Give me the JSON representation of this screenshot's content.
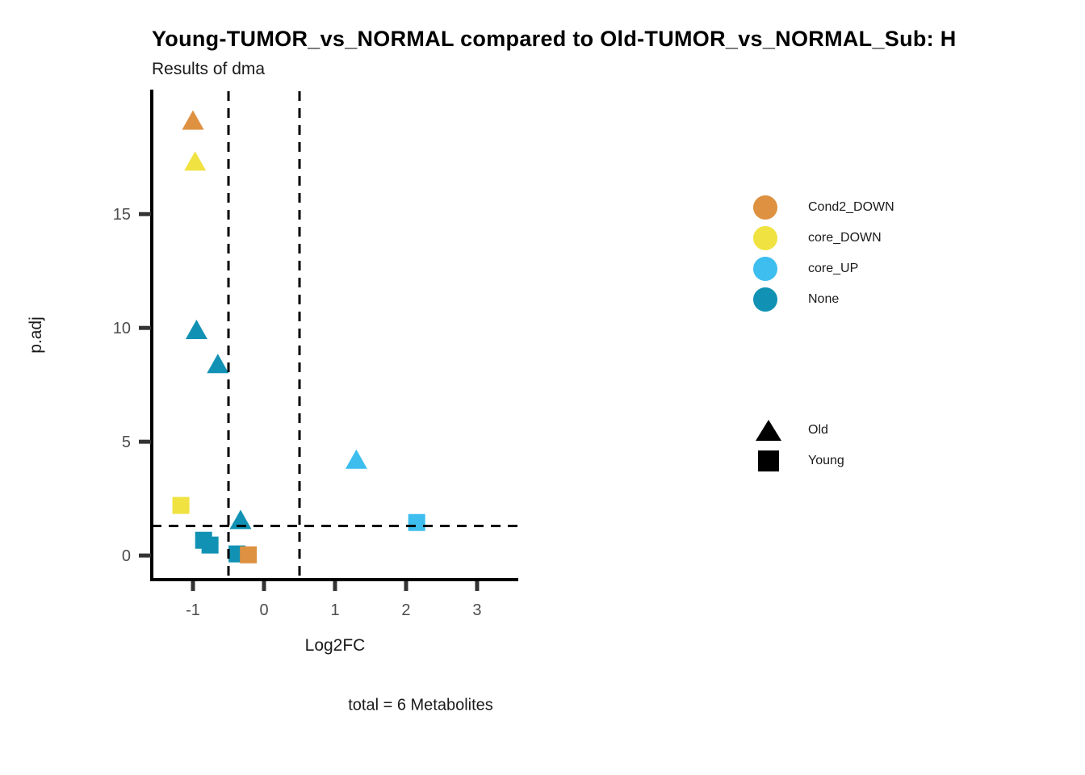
{
  "chart_data": {
    "type": "scatter",
    "title": "Young-TUMOR_vs_NORMAL compared to Old-TUMOR_vs_NORMAL_Sub: H",
    "subtitle": "Results of dma",
    "caption": "total = 6 Metabolites",
    "xlabel": "Log2FC",
    "ylabel": "p.adj",
    "xlim": [
      -1.58,
      3.58
    ],
    "ylim": [
      -1.06,
      20.4
    ],
    "x_ticks": [
      -1,
      0,
      1,
      2,
      3
    ],
    "y_ticks": [
      0,
      5,
      10,
      15
    ],
    "grid": false,
    "legend_position": "right",
    "reference_lines": {
      "style": "dashed",
      "vertical_x": [
        -0.5,
        0.5
      ],
      "horizontal_y": [
        1.3
      ]
    },
    "series_colors": {
      "Cond2_DOWN": "#DE9141",
      "core_DOWN": "#F0E240",
      "core_UP": "#3DBEEE",
      "None": "#1192B4"
    },
    "shape_map": {
      "Old": "triangle",
      "Young": "square"
    },
    "points": [
      {
        "x": -1.0,
        "y": 19.1,
        "category": "Cond2_DOWN",
        "group": "Old"
      },
      {
        "x": -0.97,
        "y": 17.3,
        "category": "core_DOWN",
        "group": "Old"
      },
      {
        "x": -0.95,
        "y": 9.9,
        "category": "None",
        "group": "Old"
      },
      {
        "x": -0.65,
        "y": 8.4,
        "category": "None",
        "group": "Old"
      },
      {
        "x": 1.3,
        "y": 4.2,
        "category": "core_UP",
        "group": "Old"
      },
      {
        "x": -0.33,
        "y": 1.55,
        "category": "None",
        "group": "Old"
      },
      {
        "x": -1.17,
        "y": 2.2,
        "category": "core_DOWN",
        "group": "Young"
      },
      {
        "x": -0.85,
        "y": 0.67,
        "category": "None",
        "group": "Young"
      },
      {
        "x": -0.76,
        "y": 0.46,
        "category": "None",
        "group": "Young"
      },
      {
        "x": -0.38,
        "y": 0.07,
        "category": "None",
        "group": "Young"
      },
      {
        "x": -0.22,
        "y": 0.03,
        "category": "Cond2_DOWN",
        "group": "Young"
      },
      {
        "x": 2.15,
        "y": 1.45,
        "category": "core_UP",
        "group": "Young"
      }
    ],
    "legend": {
      "color_items": [
        {
          "label": "Cond2_DOWN",
          "color": "#DE9141"
        },
        {
          "label": "core_DOWN",
          "color": "#F0E240"
        },
        {
          "label": "core_UP",
          "color": "#3DBEEE"
        },
        {
          "label": "None",
          "color": "#1192B4"
        }
      ],
      "shape_items": [
        {
          "label": "Old",
          "shape": "triangle"
        },
        {
          "label": "Young",
          "shape": "square"
        }
      ]
    },
    "style_colors": {
      "axis_line": "#000000",
      "tick_mark": "#333333",
      "tick_label": "#4d4d4d",
      "shape_key_fill": "#000000"
    }
  }
}
